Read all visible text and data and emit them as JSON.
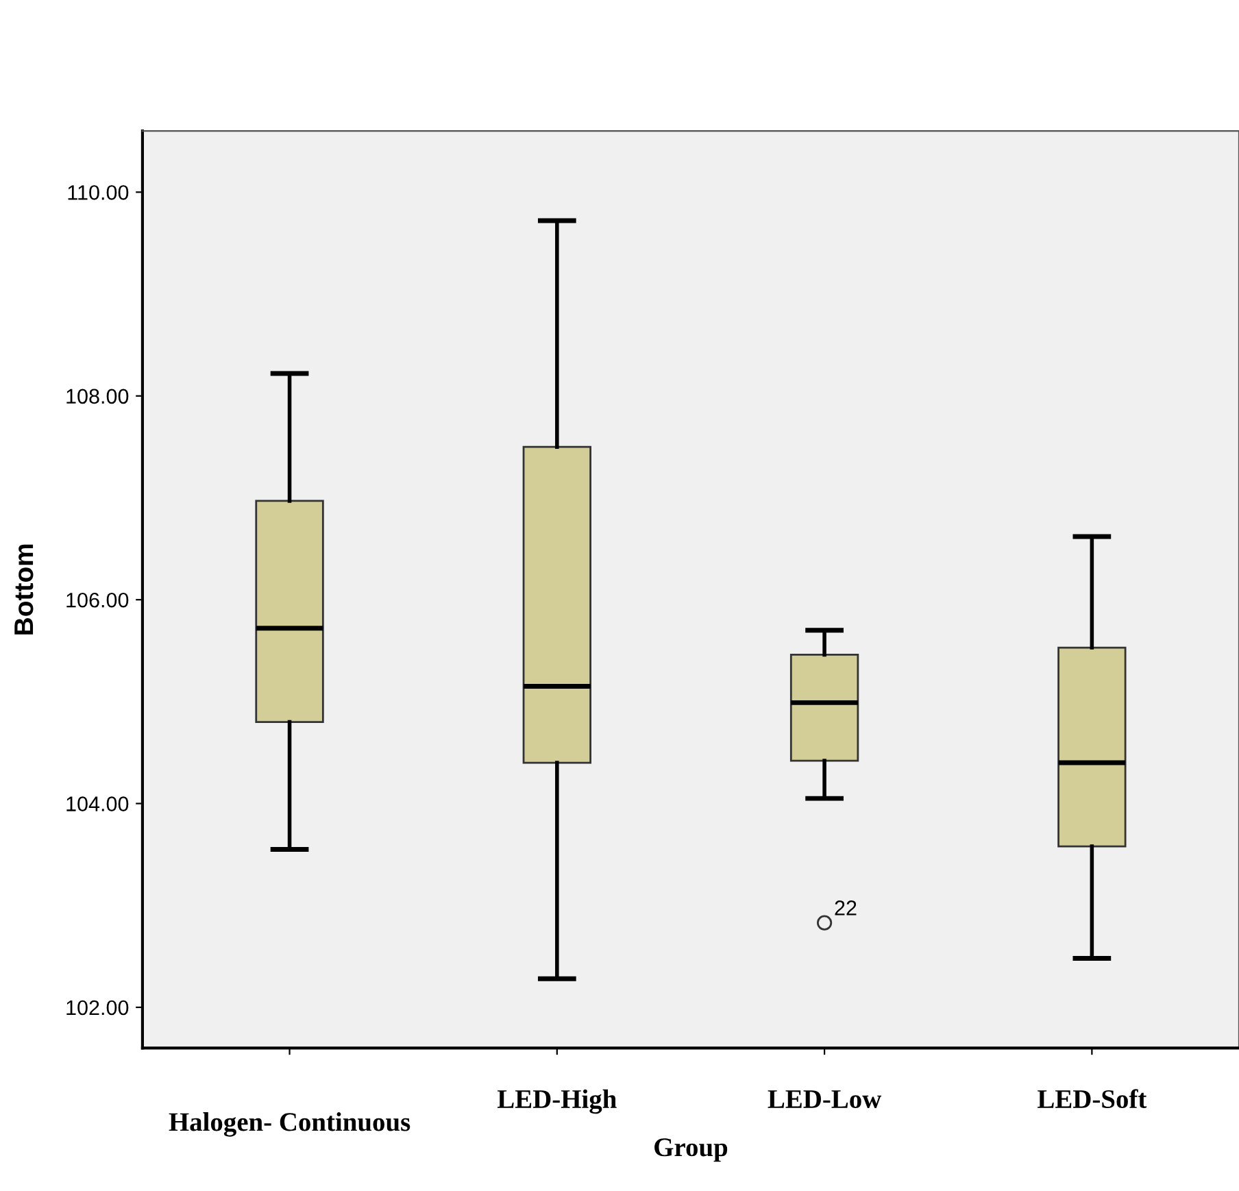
{
  "chart_data": {
    "type": "box",
    "xlabel": "Group",
    "ylabel": "Bottom",
    "categories": [
      "Halogen- Continuous",
      "LED-High",
      "LED-Low",
      "LED-Soft"
    ],
    "boxes": [
      {
        "low": 103.55,
        "q1": 104.8,
        "median": 105.72,
        "q3": 106.97,
        "high": 108.22
      },
      {
        "low": 102.28,
        "q1": 104.4,
        "median": 105.15,
        "q3": 107.5,
        "high": 109.72
      },
      {
        "low": 104.05,
        "q1": 104.42,
        "median": 104.99,
        "q3": 105.46,
        "high": 105.7,
        "outliers": [
          102.83
        ]
      },
      {
        "low": 102.48,
        "q1": 103.58,
        "median": 104.4,
        "q3": 105.53,
        "high": 106.62
      }
    ],
    "color": "#d3ce97",
    "annotations": [
      "22"
    ],
    "ylim": [
      101.6,
      110.6
    ],
    "yticks": [
      {
        "value": 102,
        "label": "102.00"
      },
      {
        "value": 104,
        "label": "104.00"
      },
      {
        "value": 106,
        "label": "106.00"
      },
      {
        "value": 108,
        "label": "108.00"
      },
      {
        "value": 110,
        "label": "110.00"
      }
    ],
    "grid": false,
    "legend": false
  }
}
